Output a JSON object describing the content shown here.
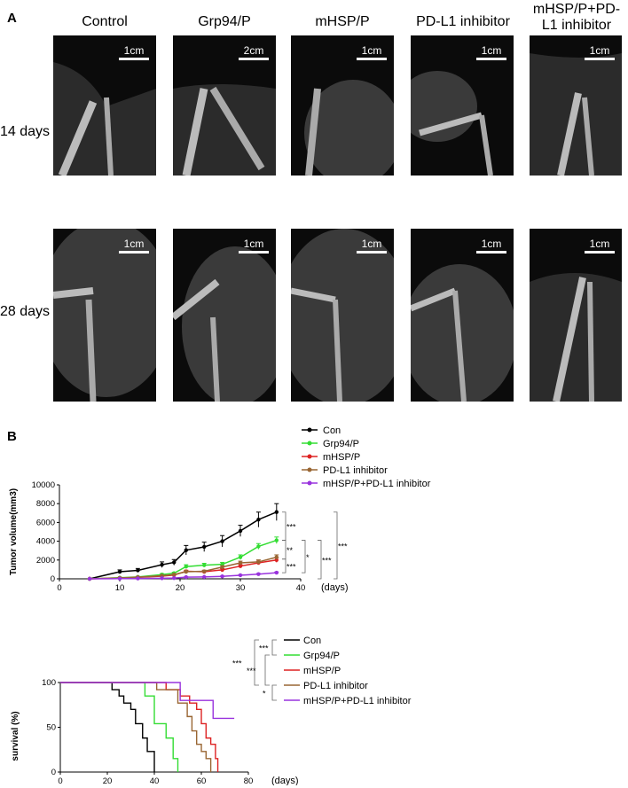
{
  "panelA": {
    "letter": "A",
    "columns": [
      "Control",
      "Grp94/P",
      "mHSP/P",
      "PD-L1 inhibitor",
      "mHSP/P+PD-L1 inhibitor"
    ],
    "rows": [
      "14 days",
      "28 days"
    ],
    "scalebars": [
      [
        "1cm",
        "2cm",
        "1cm",
        "1cm",
        "1cm"
      ],
      [
        "1cm",
        "1cm",
        "1cm",
        "1cm",
        "1cm"
      ]
    ]
  },
  "panelB": {
    "letter": "B"
  },
  "chart_data": [
    {
      "type": "line",
      "ylabel": "Tumor volume(mm3)",
      "xlabel": "(days)",
      "xlim": [
        0,
        40
      ],
      "ylim": [
        0,
        10000
      ],
      "xticks": [
        0,
        10,
        20,
        30,
        40
      ],
      "yticks": [
        0,
        2000,
        4000,
        6000,
        8000,
        10000
      ],
      "legend": [
        "Con",
        "Grp94/P",
        "mHSP/P",
        "PD-L1 inhibitor",
        "mHSP/P+PD-L1 inhibitor"
      ],
      "legend_position": "top-right",
      "x": [
        5,
        10,
        13,
        17,
        19,
        21,
        24,
        27,
        30,
        33,
        36
      ],
      "series": [
        {
          "name": "Con",
          "color": "#000000",
          "values": [
            0,
            750,
            900,
            1500,
            1750,
            3050,
            3400,
            4000,
            5100,
            6300,
            7100
          ],
          "errors": [
            0,
            200,
            200,
            300,
            300,
            500,
            500,
            600,
            600,
            800,
            900
          ]
        },
        {
          "name": "Grp94/P",
          "color": "#33dd33",
          "values": [
            0,
            120,
            200,
            450,
            600,
            1300,
            1450,
            1550,
            2300,
            3450,
            4100
          ],
          "errors": [
            0,
            50,
            60,
            100,
            100,
            200,
            200,
            200,
            250,
            300,
            350
          ]
        },
        {
          "name": "mHSP/P",
          "color": "#dd2222",
          "values": [
            0,
            80,
            150,
            280,
            400,
            800,
            750,
            950,
            1350,
            1700,
            2000
          ],
          "errors": [
            0,
            30,
            40,
            60,
            60,
            120,
            120,
            140,
            160,
            200,
            250
          ]
        },
        {
          "name": "PD-L1 inhibitor",
          "color": "#996633",
          "values": [
            0,
            100,
            180,
            330,
            450,
            750,
            800,
            1250,
            1700,
            1800,
            2300
          ],
          "errors": [
            0,
            30,
            40,
            60,
            60,
            120,
            120,
            150,
            180,
            220,
            250
          ]
        },
        {
          "name": "mHSP/P+PD-L1 inhibitor",
          "color": "#9933dd",
          "values": [
            0,
            20,
            40,
            60,
            80,
            180,
            200,
            260,
            380,
            500,
            650
          ],
          "errors": [
            0,
            10,
            10,
            20,
            20,
            40,
            40,
            50,
            60,
            70,
            80
          ]
        }
      ],
      "significance": [
        "***",
        "**",
        "*",
        "***",
        "***",
        "***"
      ]
    },
    {
      "type": "line",
      "ylabel": "survival (%)",
      "xlabel": "(days)",
      "xlim": [
        0,
        80
      ],
      "ylim": [
        0,
        100
      ],
      "xticks": [
        0,
        20,
        40,
        60,
        80
      ],
      "yticks": [
        0,
        50,
        100
      ],
      "legend": [
        "Con",
        "Grp94/P",
        "mHSP/P",
        "PD-L1 inhibitor",
        "mHSP/P+PD-L1 inhibitor"
      ],
      "legend_position": "top-right",
      "series": [
        {
          "name": "Con",
          "color": "#000000",
          "steps": [
            [
              0,
              100
            ],
            [
              22,
              100
            ],
            [
              22,
              92
            ],
            [
              25,
              92
            ],
            [
              25,
              85
            ],
            [
              27,
              85
            ],
            [
              27,
              77
            ],
            [
              30,
              77
            ],
            [
              30,
              70
            ],
            [
              32,
              70
            ],
            [
              32,
              54
            ],
            [
              35,
              54
            ],
            [
              35,
              38
            ],
            [
              37,
              38
            ],
            [
              37,
              23
            ],
            [
              40,
              23
            ],
            [
              40,
              0
            ]
          ]
        },
        {
          "name": "Grp94/P",
          "color": "#33dd33",
          "steps": [
            [
              0,
              100
            ],
            [
              36,
              100
            ],
            [
              36,
              85
            ],
            [
              40,
              85
            ],
            [
              40,
              54
            ],
            [
              45,
              54
            ],
            [
              45,
              38
            ],
            [
              48,
              38
            ],
            [
              48,
              15
            ],
            [
              50,
              15
            ],
            [
              50,
              0
            ]
          ]
        },
        {
          "name": "mHSP/P",
          "color": "#dd2222",
          "steps": [
            [
              0,
              100
            ],
            [
              45,
              100
            ],
            [
              45,
              92
            ],
            [
              51,
              92
            ],
            [
              51,
              85
            ],
            [
              55,
              85
            ],
            [
              55,
              77
            ],
            [
              58,
              77
            ],
            [
              58,
              70
            ],
            [
              60,
              70
            ],
            [
              60,
              54
            ],
            [
              62,
              54
            ],
            [
              62,
              38
            ],
            [
              64,
              38
            ],
            [
              64,
              31
            ],
            [
              66,
              31
            ],
            [
              66,
              15
            ],
            [
              67,
              15
            ],
            [
              67,
              0
            ]
          ]
        },
        {
          "name": "PD-L1 inhibitor",
          "color": "#996633",
          "steps": [
            [
              0,
              100
            ],
            [
              41,
              100
            ],
            [
              41,
              92
            ],
            [
              50,
              92
            ],
            [
              50,
              77
            ],
            [
              54,
              77
            ],
            [
              54,
              62
            ],
            [
              56,
              62
            ],
            [
              56,
              46
            ],
            [
              58,
              46
            ],
            [
              58,
              31
            ],
            [
              60,
              31
            ],
            [
              60,
              23
            ],
            [
              62,
              23
            ],
            [
              62,
              15
            ],
            [
              64,
              15
            ],
            [
              64,
              0
            ]
          ]
        },
        {
          "name": "mHSP/P+PD-L1 inhibitor",
          "color": "#9933dd",
          "steps": [
            [
              0,
              100
            ],
            [
              51,
              100
            ],
            [
              51,
              80
            ],
            [
              65,
              80
            ],
            [
              65,
              60
            ],
            [
              74,
              60
            ]
          ]
        }
      ],
      "significance": [
        "***",
        "***",
        "***",
        "*"
      ]
    }
  ]
}
